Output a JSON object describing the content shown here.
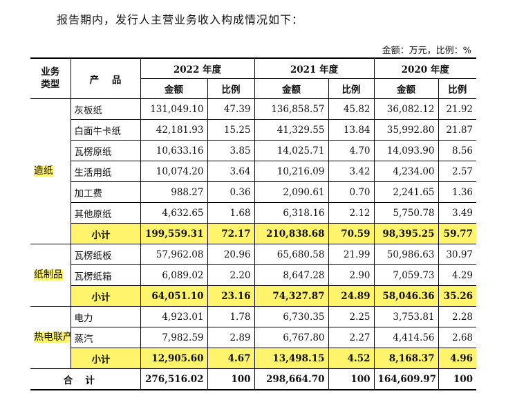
{
  "intro": "报告期内，发行人主营业务收入构成情况如下：",
  "unit_note": "金额：万元，比例：%",
  "header": {
    "type": "业务类型",
    "product": "产    品",
    "years": [
      "2022 年度",
      "2021 年度",
      "2020 年度"
    ],
    "amount": "金额",
    "ratio": "比例"
  },
  "groups": [
    {
      "name": "造纸",
      "rows": [
        {
          "product": "灰板纸",
          "v": [
            "131,049.10",
            "47.39",
            "136,858.57",
            "45.82",
            "36,082.12",
            "21.92"
          ]
        },
        {
          "product": "白面牛卡纸",
          "v": [
            "42,181.93",
            "15.25",
            "41,329.55",
            "13.84",
            "35,992.80",
            "21.87"
          ]
        },
        {
          "product": "瓦楞原纸",
          "v": [
            "10,633.16",
            "3.85",
            "14,025.71",
            "4.70",
            "14,093.90",
            "8.56"
          ]
        },
        {
          "product": "生活用纸",
          "v": [
            "10,074.20",
            "3.64",
            "10,216.09",
            "3.42",
            "4,234.00",
            "2.57"
          ]
        },
        {
          "product": "加工费",
          "v": [
            "988.27",
            "0.36",
            "2,090.61",
            "0.70",
            "2,241.65",
            "1.36"
          ]
        },
        {
          "product": "其他原纸",
          "v": [
            "4,632.65",
            "1.68",
            "6,318.16",
            "2.12",
            "5,750.78",
            "3.49"
          ]
        }
      ],
      "subtotal": {
        "label": "小计",
        "v": [
          "199,559.31",
          "72.17",
          "210,838.68",
          "70.59",
          "98,395.25",
          "59.77"
        ]
      }
    },
    {
      "name": "纸制品",
      "rows": [
        {
          "product": "瓦楞纸板",
          "v": [
            "57,962.08",
            "20.96",
            "65,680.58",
            "21.99",
            "50,986.63",
            "30.97"
          ]
        },
        {
          "product": "瓦楞纸箱",
          "v": [
            "6,089.02",
            "2.20",
            "8,647.28",
            "2.90",
            "7,059.73",
            "4.29"
          ]
        }
      ],
      "subtotal": {
        "label": "小计",
        "v": [
          "64,051.10",
          "23.16",
          "74,327.87",
          "24.89",
          "58,046.36",
          "35.26"
        ]
      }
    },
    {
      "name": "热电联产",
      "rows": [
        {
          "product": "电力",
          "v": [
            "4,923.01",
            "1.78",
            "6,730.35",
            "2.25",
            "3,753.81",
            "2.28"
          ]
        },
        {
          "product": "蒸汽",
          "v": [
            "7,982.59",
            "2.89",
            "6,767.80",
            "2.27",
            "4,414.56",
            "2.68"
          ]
        }
      ],
      "subtotal": {
        "label": "小计",
        "v": [
          "12,905.60",
          "4.67",
          "13,498.15",
          "4.52",
          "8,168.37",
          "4.96"
        ]
      }
    }
  ],
  "total": {
    "label": "合计",
    "v": [
      "276,516.02",
      "100",
      "298,664.70",
      "100",
      "164,609.97",
      "100"
    ]
  }
}
